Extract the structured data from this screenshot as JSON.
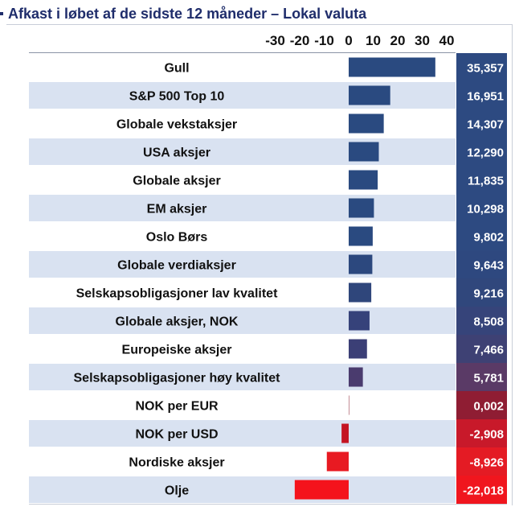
{
  "title": "Afkast i løbet af de sidste 12 måneder – Lokal valuta",
  "chart_data": {
    "type": "bar",
    "orientation": "horizontal",
    "title": "Afkast i løbet af de sidste 12 måneder – Lokal valuta",
    "xlim": [
      -30,
      40
    ],
    "ticks": [
      -30,
      -20,
      -10,
      0,
      10,
      20,
      30,
      40
    ],
    "tick_labels": [
      "-30",
      "-20",
      "-10",
      "0",
      "10",
      "20",
      "30",
      "40"
    ],
    "categories": [
      "Gull",
      "S&P 500 Top 10",
      "Globale vekstaksjer",
      "USA aksjer",
      "Globale aksjer",
      "EM aksjer",
      "Oslo Børs",
      "Globale verdiaksjer",
      "Selskapsobligasjoner lav kvalitet",
      "Globale aksjer, NOK",
      "Europeiske aksjer",
      "Selskapsobligasjoner høy kvalitet",
      "NOK per EUR",
      "NOK per USD",
      "Nordiske aksjer",
      "Olje"
    ],
    "values": [
      35.357,
      16.951,
      14.307,
      12.29,
      11.835,
      10.298,
      9.802,
      9.643,
      9.216,
      8.508,
      7.466,
      5.781,
      0.002,
      -2.908,
      -8.926,
      -22.018
    ],
    "value_labels": [
      "35,357",
      "16,951",
      "14,307",
      "12,290",
      "11,835",
      "10,298",
      "9,802",
      "9,643",
      "9,216",
      "8,508",
      "7,466",
      "5,781",
      "0,002",
      "-2,908",
      "-8,926",
      "-22,018"
    ],
    "bar_colors": [
      "#2a4a80",
      "#2a4a80",
      "#2a4a80",
      "#2a4a80",
      "#2a4a80",
      "#2a4a80",
      "#2a4a80",
      "#2c487e",
      "#2f467b",
      "#36427a",
      "#3b3f76",
      "#4a3b6e",
      "#8a1c2c",
      "#c41422",
      "#e81a22",
      "#f4131c"
    ],
    "value_cell_colors": [
      "#2d4a81",
      "#2d4a81",
      "#2d4a81",
      "#2d4a81",
      "#2d4a81",
      "#2d4a81",
      "#2d4a81",
      "#2e487f",
      "#30477c",
      "#36447a",
      "#3e4174",
      "#5a3a66",
      "#8f1d33",
      "#c8192a",
      "#e41b24",
      "#f0161e"
    ],
    "grid": true,
    "row_band_color": "#d9e2f1"
  }
}
